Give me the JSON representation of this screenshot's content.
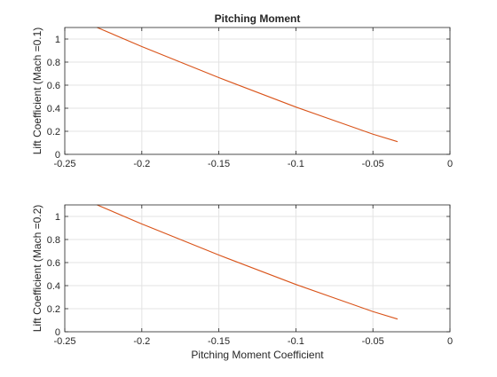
{
  "chart_data": [
    {
      "type": "line",
      "title": "Pitching Moment",
      "xlabel": "",
      "ylabel": "Lift Coefficient (Mach =0.1)",
      "xlim": [
        -0.25,
        0
      ],
      "ylim": [
        0,
        1.1
      ],
      "xticks": [
        -0.25,
        -0.2,
        -0.15,
        -0.1,
        -0.05,
        0
      ],
      "xtick_labels": [
        "-0.25",
        "-0.2",
        "-0.15",
        "-0.1",
        "-0.05",
        "0"
      ],
      "yticks": [
        0,
        0.2,
        0.4,
        0.6,
        0.8,
        1
      ],
      "ytick_labels": [
        "0",
        "0.2",
        "0.4",
        "0.6",
        "0.8",
        "1"
      ],
      "grid": true,
      "line_color": "#D95319",
      "series": [
        {
          "x": [
            -0.229,
            -0.2,
            -0.15,
            -0.1,
            -0.05,
            -0.034
          ],
          "y": [
            1.1,
            0.935,
            0.665,
            0.41,
            0.175,
            0.11
          ]
        }
      ]
    },
    {
      "type": "line",
      "title": "",
      "xlabel": "Pitching Moment Coefficient",
      "ylabel": "Lift Coefficient (Mach =0.2)",
      "xlim": [
        -0.25,
        0
      ],
      "ylim": [
        0,
        1.1
      ],
      "xticks": [
        -0.25,
        -0.2,
        -0.15,
        -0.1,
        -0.05,
        0
      ],
      "xtick_labels": [
        "-0.25",
        "-0.2",
        "-0.15",
        "-0.1",
        "-0.05",
        "0"
      ],
      "yticks": [
        0,
        0.2,
        0.4,
        0.6,
        0.8,
        1
      ],
      "ytick_labels": [
        "0",
        "0.2",
        "0.4",
        "0.6",
        "0.8",
        "1"
      ],
      "grid": true,
      "line_color": "#D95319",
      "series": [
        {
          "x": [
            -0.229,
            -0.2,
            -0.15,
            -0.1,
            -0.05,
            -0.034
          ],
          "y": [
            1.1,
            0.935,
            0.665,
            0.41,
            0.175,
            0.11
          ]
        }
      ]
    }
  ]
}
